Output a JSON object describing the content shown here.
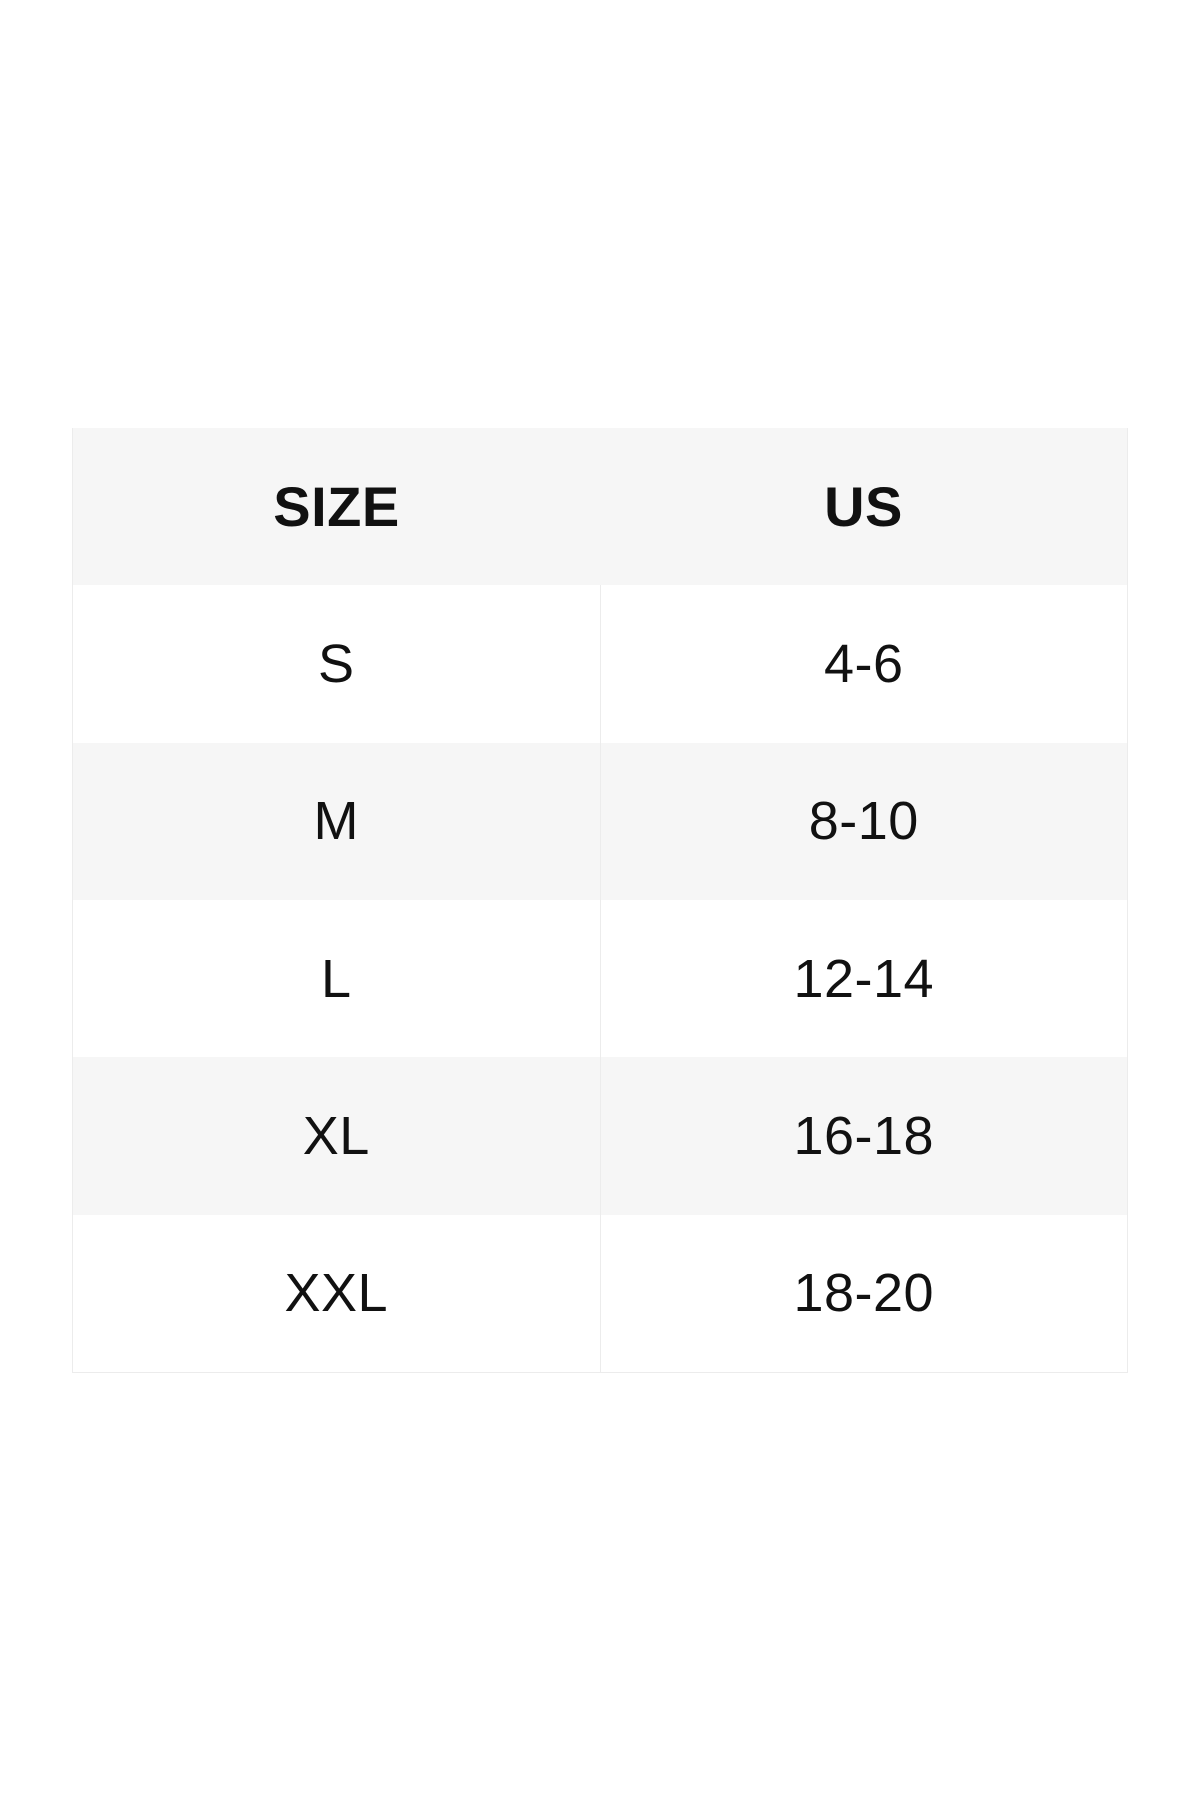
{
  "size_chart": {
    "columns": [
      {
        "id": "size",
        "label": "SIZE"
      },
      {
        "id": "us",
        "label": "US"
      }
    ],
    "rows": [
      {
        "size": "S",
        "us": "4-6"
      },
      {
        "size": "M",
        "us": "8-10"
      },
      {
        "size": "L",
        "us": "12-14"
      },
      {
        "size": "XL",
        "us": "16-18"
      },
      {
        "size": "XXL",
        "us": "18-20"
      }
    ],
    "colors": {
      "page_background": "#ffffff",
      "header_background": "#f6f6f6",
      "row_background": "#ffffff",
      "row_alt_background": "#f6f6f6",
      "divider": "#ececec",
      "text": "#111111"
    }
  },
  "chart_data": {
    "type": "table",
    "columns": [
      "SIZE",
      "US"
    ],
    "rows": [
      [
        "S",
        "4-6"
      ],
      [
        "M",
        "8-10"
      ],
      [
        "L",
        "12-14"
      ],
      [
        "XL",
        "16-18"
      ],
      [
        "XXL",
        "18-20"
      ]
    ],
    "layout_hints": {
      "header_style": "bold, light-gray band",
      "zebra_striping": "rows alternate white / light gray starting with white",
      "alignment": "all cells horizontally and vertically centered",
      "grid": "hairline vertical divider between columns on body rows; hairline outer border left/right/bottom"
    }
  }
}
